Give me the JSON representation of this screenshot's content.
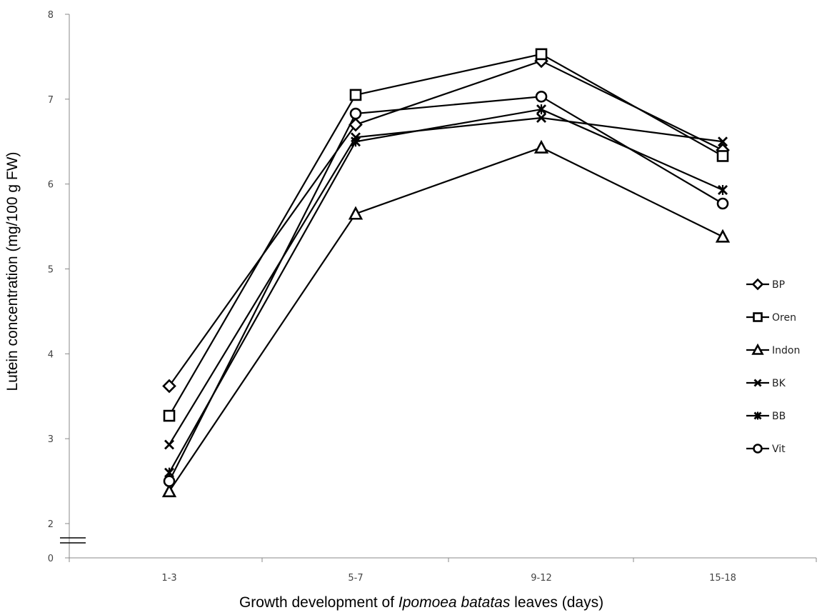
{
  "chart_data": {
    "type": "line",
    "categories": [
      "1-3",
      "5-7",
      "9-12",
      "15-18"
    ],
    "ylim": [
      0,
      8
    ],
    "y_axis_break": true,
    "y_ticks": [
      "0",
      "2",
      "3",
      "4",
      "5",
      "6",
      "7",
      "8"
    ],
    "ylabel": "Lutein concentration (mg/100 g FW)",
    "xlabel_prefix": "Growth development of ",
    "xlabel_italic": "Ipomoea batatas",
    "xlabel_suffix": " leaves (days)",
    "grid": false,
    "legend_position": "right",
    "series": [
      {
        "name": "BP",
        "marker": "diamond",
        "values": [
          3.62,
          6.7,
          7.45,
          6.4
        ]
      },
      {
        "name": "Oren",
        "marker": "square",
        "values": [
          3.27,
          7.05,
          7.53,
          6.33
        ]
      },
      {
        "name": "Indon",
        "marker": "triangle",
        "values": [
          2.38,
          5.65,
          6.43,
          5.38
        ]
      },
      {
        "name": "BK",
        "marker": "x",
        "values": [
          2.93,
          6.55,
          6.78,
          6.5
        ]
      },
      {
        "name": "BB",
        "marker": "star",
        "values": [
          2.6,
          6.5,
          6.88,
          5.93
        ]
      },
      {
        "name": "Vit",
        "marker": "circle",
        "values": [
          2.5,
          6.83,
          7.03,
          5.77
        ]
      }
    ],
    "line_color": "#000000"
  }
}
